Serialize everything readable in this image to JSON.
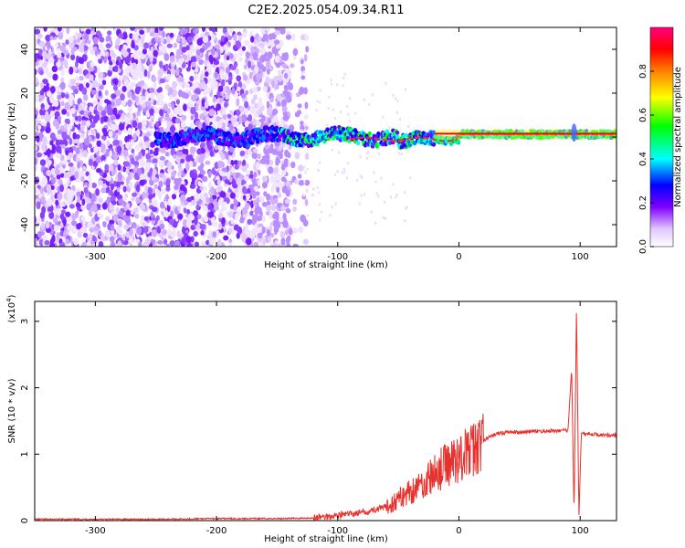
{
  "page": {
    "title": "C2E2.2025.054.09.34.R11"
  },
  "colors": {
    "snr_line": "#e8302c",
    "axis": "#000000",
    "background": "#ffffff"
  },
  "chart_data": [
    {
      "type": "heatmap",
      "xlabel": "Height of straight line (km)",
      "ylabel": "Frequency (Hz)",
      "xlim": [
        -350,
        130
      ],
      "ylim": [
        -50,
        50
      ],
      "xticks": [
        -300,
        -200,
        -100,
        0,
        100
      ],
      "yticks": [
        -40,
        -20,
        0,
        20,
        40
      ],
      "colorbar": {
        "label": "Normalized spectral amplitude",
        "range": [
          0,
          1
        ],
        "ticks": [
          "0.0",
          "0.2",
          "0.4",
          "0.6",
          "0.8"
        ],
        "colormap": [
          "#ffffff",
          "#8000ff",
          "#0000ff",
          "#00ffff",
          "#00ff00",
          "#ffff00",
          "#ff8000",
          "#ff0000",
          "#ff0080"
        ]
      },
      "features": {
        "noise_region_x": [
          -350,
          -140
        ],
        "fading_noise_x": [
          -140,
          -125
        ],
        "signal_band_center_hz": 0,
        "signal_band_start_x": -250,
        "strong_signal_start_x": -20,
        "spike_x": 95
      }
    },
    {
      "type": "line",
      "xlabel": "Height of straight line (km)",
      "ylabel": "SNR (10 * v/v)",
      "y_multiplier": "(x10^4)",
      "xlim": [
        -350,
        130
      ],
      "ylim": [
        0,
        3.3
      ],
      "xticks": [
        -300,
        -200,
        -100,
        0,
        100
      ],
      "yticks": [
        0,
        1,
        2,
        3
      ],
      "series": [
        {
          "points": [
            [
              -350,
              0.02
            ],
            [
              -300,
              0.02
            ],
            [
              -250,
              0.02
            ],
            [
              -200,
              0.03
            ],
            [
              -150,
              0.03
            ],
            [
              -120,
              0.04
            ],
            [
              -100,
              0.08
            ],
            [
              -80,
              0.12
            ],
            [
              -60,
              0.2
            ],
            [
              -40,
              0.45
            ],
            [
              -30,
              0.55
            ],
            [
              -20,
              0.7
            ],
            [
              -10,
              0.85
            ],
            [
              0,
              0.95
            ],
            [
              10,
              1.05
            ],
            [
              20,
              1.2
            ],
            [
              30,
              1.3
            ],
            [
              40,
              1.33
            ],
            [
              60,
              1.34
            ],
            [
              80,
              1.35
            ],
            [
              90,
              1.36
            ],
            [
              93,
              2.3
            ],
            [
              95,
              0.1
            ],
            [
              97,
              3.2
            ],
            [
              99,
              0.05
            ],
            [
              101,
              1.32
            ],
            [
              110,
              1.3
            ],
            [
              130,
              1.28
            ]
          ]
        }
      ]
    }
  ]
}
